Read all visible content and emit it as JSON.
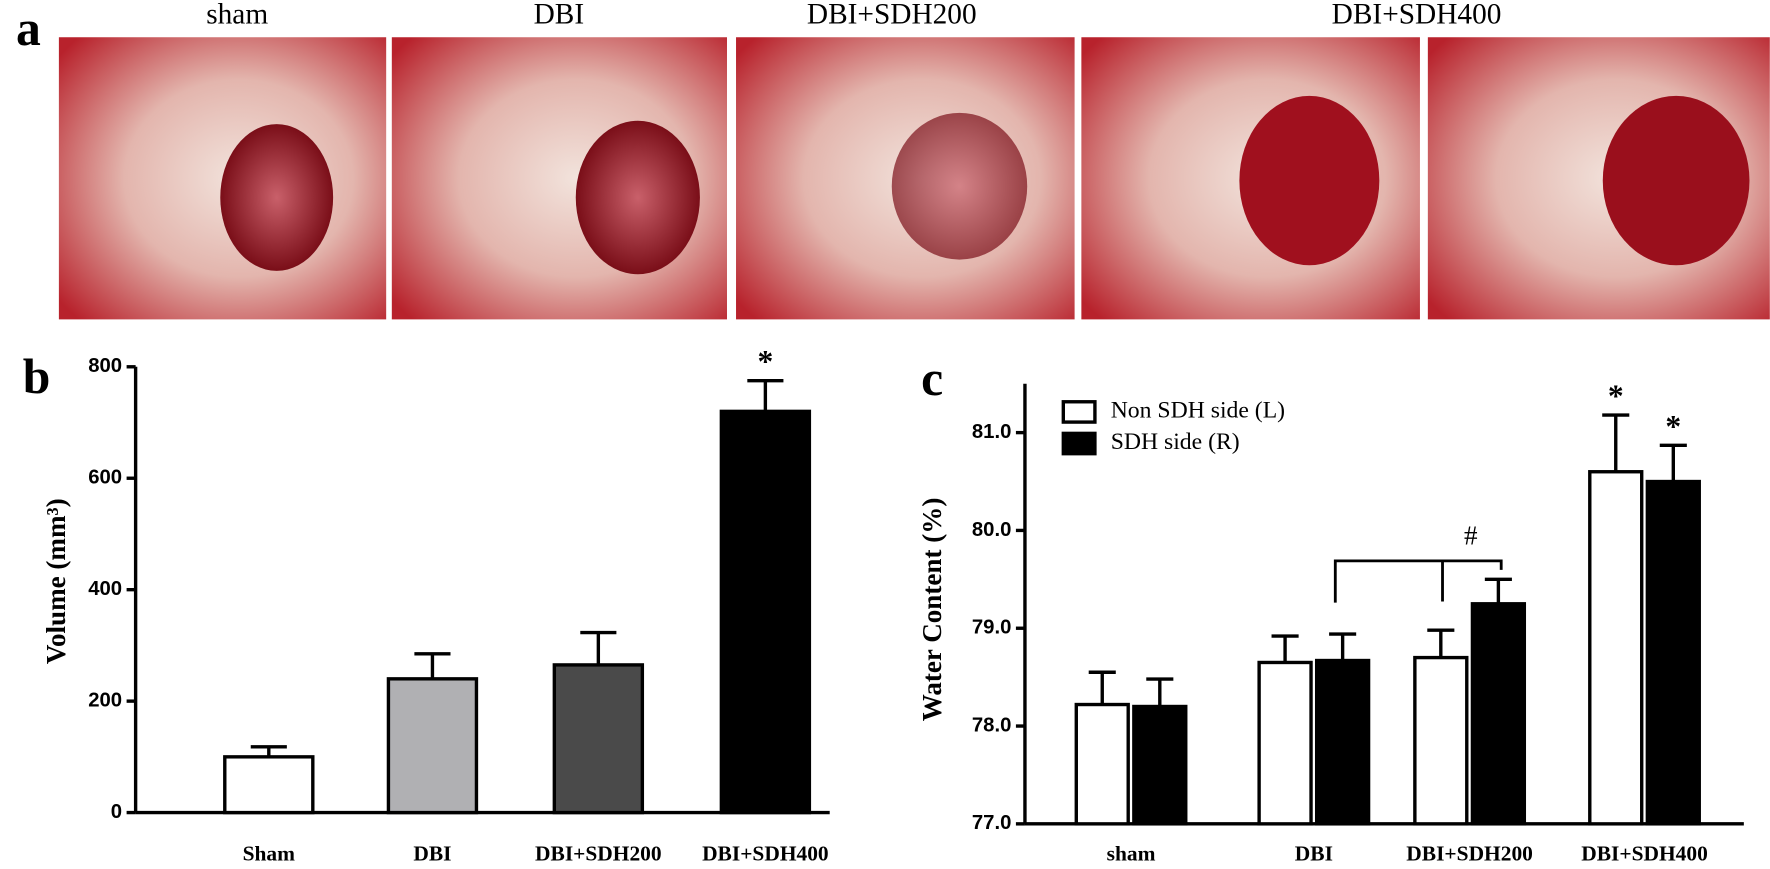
{
  "panel_a": {
    "label": "a",
    "photo_labels": [
      "sham",
      "DBI",
      "DBI+SDH200",
      "DBI+SDH400"
    ]
  },
  "chart_data": [
    {
      "type": "bar",
      "panel_label": "b",
      "ylabel": "Volume (mm³)",
      "categories": [
        "Sham",
        "DBI",
        "DBI+SDH200",
        "DBI+SDH400"
      ],
      "values": [
        100,
        240,
        265,
        720
      ],
      "errors": [
        18,
        45,
        58,
        55
      ],
      "colors": [
        "#ffffff",
        "#b0b0b3",
        "#4a4a4a",
        "#000000"
      ],
      "value_annotations": [
        null,
        null,
        null,
        "*"
      ],
      "ylim": [
        0,
        800
      ],
      "yticks": [
        0,
        200,
        400,
        600,
        800
      ]
    },
    {
      "type": "grouped_bar",
      "panel_label": "c",
      "ylabel": "Water Content (%)",
      "categories": [
        "sham",
        "DBI",
        "DBI+SDH200",
        "DBI+SDH400"
      ],
      "series": [
        {
          "name": "Non SDH side (L)",
          "color": "#ffffff",
          "values": [
            78.22,
            78.65,
            78.7,
            80.6
          ],
          "errors": [
            0.33,
            0.27,
            0.28,
            0.58
          ],
          "value_annotations": [
            null,
            null,
            null,
            "*"
          ]
        },
        {
          "name": "SDH side (R)",
          "color": "#000000",
          "values": [
            78.2,
            78.67,
            79.25,
            80.5
          ],
          "errors": [
            0.28,
            0.27,
            0.25,
            0.37
          ],
          "value_annotations": [
            null,
            null,
            null,
            "*"
          ]
        }
      ],
      "comparison_label": "#",
      "legend": "upper left",
      "ylim": [
        77.0,
        81.5
      ],
      "yticks": [
        {
          "value": 77,
          "label": "77.0"
        },
        {
          "value": 78,
          "label": "78.0"
        },
        {
          "value": 79,
          "label": "79.0"
        },
        {
          "value": 80,
          "label": "80.0"
        },
        {
          "value": 81,
          "label": "81.0"
        }
      ]
    }
  ]
}
